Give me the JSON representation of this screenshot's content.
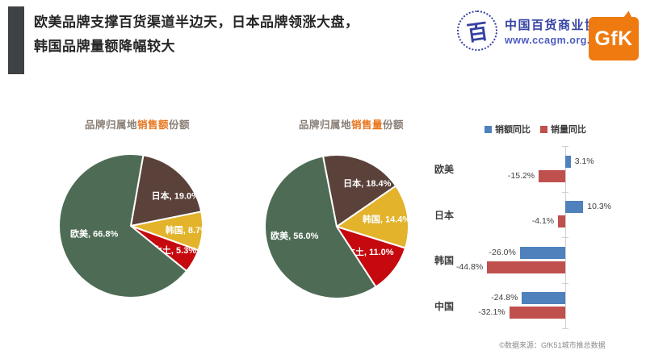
{
  "slide": {
    "title_line1": "欧美品牌支撑百货渠道半边天，日本品牌领涨大盘，",
    "title_line2": "韩国品牌量额降幅较大"
  },
  "header": {
    "assoc_icon_glyph": "百",
    "assoc_name": "中国百货商业协会",
    "assoc_url": "www.ccagm.org.cn",
    "gfk_text": "GfK"
  },
  "colors": {
    "accent_bar": "#3d4246",
    "pie_green": "#4e6c55",
    "pie_brown": "#5a413a",
    "pie_yellow": "#e2b32b",
    "pie_red": "#c5090e",
    "bar_blue": "#4f81bd",
    "bar_red": "#c0504d",
    "title_orange": "#e8771f",
    "logo_orange": "#ee7a10",
    "logo_blue": "#3642a2"
  },
  "chart_data": [
    {
      "type": "pie",
      "title_prefix": "品牌归属地",
      "title_highlight": "销售额",
      "title_suffix": "份额",
      "start_angle_deg": 10,
      "slices": [
        {
          "label": "日本",
          "value": 19.0,
          "color": "#5a413a"
        },
        {
          "label": "韩国",
          "value": 8.7,
          "color": "#e2b32b"
        },
        {
          "label": "本土",
          "value": 5.3,
          "color": "#c5090e"
        },
        {
          "label": "欧美",
          "value": 66.8,
          "color": "#4e6c55"
        }
      ]
    },
    {
      "type": "pie",
      "title_prefix": "品牌归属地",
      "title_highlight": "销售量",
      "title_suffix": "份额",
      "start_angle_deg": -11,
      "slices": [
        {
          "label": "日本",
          "value": 18.4,
          "color": "#5a413a"
        },
        {
          "label": "韩国",
          "value": 14.4,
          "color": "#e2b32b"
        },
        {
          "label": "本土",
          "value": 11.0,
          "color": "#c5090e"
        },
        {
          "label": "欧美",
          "value": 56.0,
          "color": "#4e6c55"
        }
      ]
    },
    {
      "type": "bar",
      "orientation": "horizontal",
      "categories": [
        "欧美",
        "日本",
        "韩国",
        "中国"
      ],
      "series": [
        {
          "name": "销额同比",
          "color": "#4f81bd",
          "values": [
            3.1,
            10.3,
            -26.0,
            -24.8
          ]
        },
        {
          "name": "销量同比",
          "color": "#c0504d",
          "values": [
            -15.2,
            -4.1,
            -44.8,
            -32.1
          ]
        }
      ],
      "value_suffix": "%",
      "xlim": [
        -50,
        15
      ],
      "legend_position": "top"
    }
  ],
  "footer": {
    "source": "©数据来源：GfK51城市推总数据"
  }
}
